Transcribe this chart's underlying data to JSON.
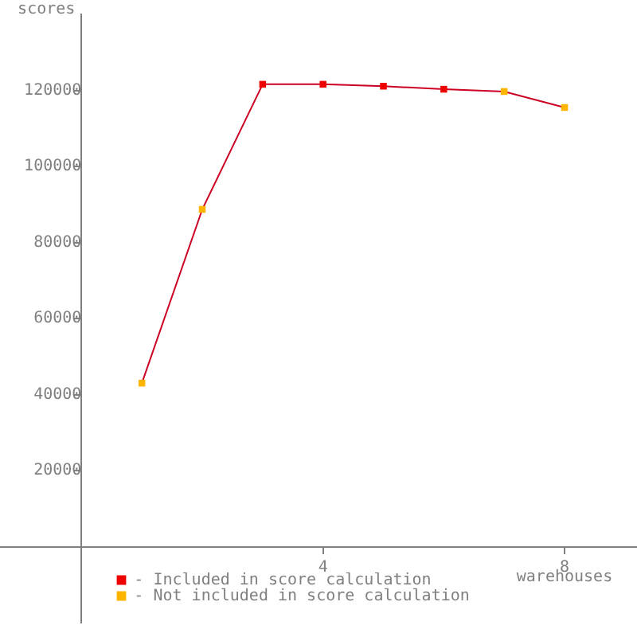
{
  "chart_data": {
    "type": "line",
    "xlabel": "warehouses",
    "ylabel": "scores",
    "x": [
      1,
      2,
      3,
      4,
      5,
      6,
      7,
      8
    ],
    "series": [
      {
        "type": "line",
        "color": "#cc0022",
        "marker": "none",
        "values": [
          43000,
          88700,
          121600,
          121600,
          121100,
          120300,
          119700,
          115500
        ]
      },
      {
        "type": "scatter",
        "name": "- Included in score calculation",
        "color": "#ee0000",
        "marker": "square",
        "values": [
          null,
          null,
          121600,
          121600,
          121100,
          120300,
          null,
          null
        ]
      },
      {
        "type": "scatter",
        "name": "- Not included in score calculation",
        "color": "#ffb400",
        "marker": "square",
        "values": [
          43000,
          88700,
          null,
          null,
          null,
          null,
          119700,
          115500
        ]
      }
    ],
    "xlim": [
      -1.35,
      9.2
    ],
    "ylim": [
      -20000,
      140000
    ],
    "xticks": [
      4,
      8
    ],
    "yticks": [
      20000,
      40000,
      60000,
      80000,
      100000,
      120000
    ],
    "legend": "bottom left"
  }
}
